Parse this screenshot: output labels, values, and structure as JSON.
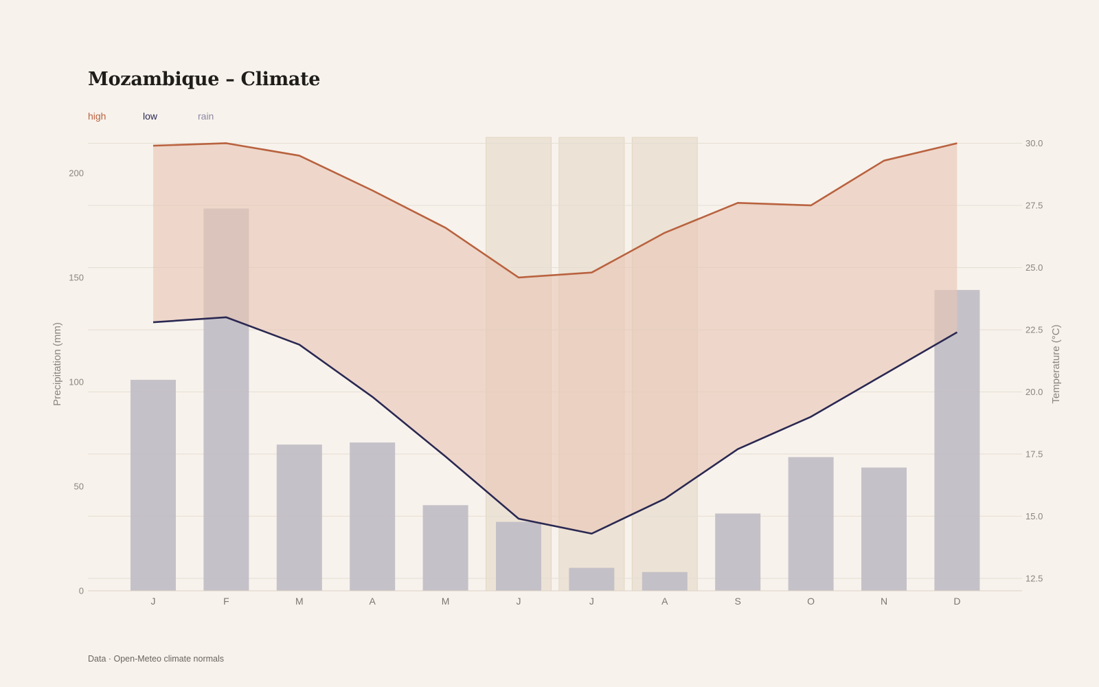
{
  "title": "Mozambique – Climate",
  "legend": {
    "high": "high",
    "low": "low",
    "rain": "rain"
  },
  "source": "Data · Open-Meteo climate normals",
  "colors": {
    "background": "#f7f2ec",
    "high": "#b9623f",
    "low": "#2a2852",
    "rain": "#c2bec6",
    "band": "#e8c6b5",
    "highlight": "#ece3d6"
  },
  "chart_data": {
    "type": "bar+line",
    "categories": [
      "J",
      "F",
      "M",
      "A",
      "M",
      "J",
      "J",
      "A",
      "S",
      "O",
      "N",
      "D"
    ],
    "highlight_months": [
      5,
      6,
      7
    ],
    "series": [
      {
        "name": "rain",
        "type": "bar",
        "axis": "left",
        "values": [
          101,
          183,
          70,
          71,
          41,
          33,
          11,
          9,
          37,
          64,
          59,
          144
        ]
      },
      {
        "name": "high",
        "type": "line",
        "axis": "right",
        "values": [
          29.9,
          30.0,
          29.5,
          28.1,
          26.6,
          24.6,
          24.8,
          26.4,
          27.6,
          27.5,
          29.3,
          30.0
        ]
      },
      {
        "name": "low",
        "type": "line",
        "axis": "right",
        "values": [
          22.8,
          23.0,
          21.9,
          19.8,
          17.4,
          14.9,
          14.3,
          15.7,
          17.7,
          19.0,
          20.7,
          22.4
        ]
      }
    ],
    "ylabel_left": "Precipitation (mm)",
    "ylabel_right": "Temperature (°C)",
    "yticks_left": [
      0,
      50,
      100,
      150,
      200
    ],
    "yticks_right": [
      12.5,
      15.0,
      17.5,
      20.0,
      22.5,
      25.0,
      27.5,
      30.0
    ],
    "ylim_left": [
      0,
      219
    ],
    "ylim_right": [
      12,
      30.4
    ],
    "grid": true
  }
}
